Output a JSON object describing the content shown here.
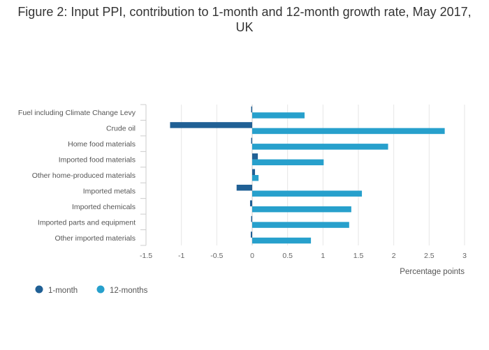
{
  "chart_data": {
    "type": "bar",
    "orientation": "horizontal",
    "title": "Figure 2: Input PPI, contribution to 1-month and 12-month growth rate, May 2017, UK",
    "xlabel": "Percentage points",
    "ylabel": "",
    "xlim": [
      -1.5,
      3
    ],
    "xticks": [
      "-1.5",
      "-1",
      "-0.5",
      "0",
      "0.5",
      "1",
      "1.5",
      "2",
      "2.5",
      "3"
    ],
    "grid": true,
    "legend_position": "bottom-left",
    "categories": [
      "Fuel including Climate Change Levy",
      "Crude oil",
      "Home food materials",
      "Imported food materials",
      "Other home-produced materials",
      "Imported metals",
      "Imported chemicals",
      "Imported parts and equipment",
      "Other imported materials"
    ],
    "series": [
      {
        "name": "1-month",
        "color": "#206095",
        "values": [
          -0.01,
          -1.16,
          -0.01,
          0.08,
          0.04,
          -0.22,
          -0.03,
          -0.01,
          -0.02
        ]
      },
      {
        "name": "12-months",
        "color": "#27a0cc",
        "values": [
          0.74,
          2.72,
          1.92,
          1.01,
          0.09,
          1.55,
          1.4,
          1.37,
          0.83
        ]
      }
    ]
  }
}
